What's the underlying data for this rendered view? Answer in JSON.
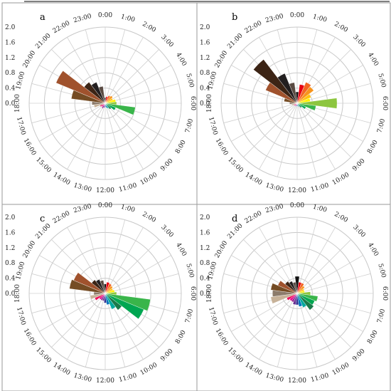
{
  "chart_data": [
    {
      "type": "polar-bar",
      "panel_label": "a",
      "radial_ticks": [
        "0.0",
        "0.4",
        "0.8",
        "1.2",
        "1.6",
        "2.0"
      ],
      "rmax": 2.0,
      "hour_labels": [
        "0:00",
        "1:00",
        "2:00",
        "3:00",
        "4:00",
        "5:00",
        "6:00",
        "7:00",
        "8:00",
        "9:00",
        "10:00",
        "11:00",
        "12:00",
        "13:00",
        "14:00",
        "15:00",
        "16:00",
        "17:00",
        "18:00",
        "19:00",
        "20:00",
        "21:00",
        "22:00",
        "23:00"
      ],
      "values": [
        0.15,
        0.18,
        0.22,
        0.25,
        0.22,
        0.28,
        0.3,
        0.8,
        0.3,
        0.2,
        0.15,
        0.12,
        0.1,
        0.12,
        0.15,
        0.12,
        0.15,
        0.3,
        0.35,
        0.9,
        1.4,
        0.7,
        0.6,
        0.45
      ]
    },
    {
      "type": "polar-bar",
      "panel_label": "b",
      "radial_ticks": [
        "0.0",
        "0.4",
        "0.8",
        "1.2",
        "1.6",
        "2.0"
      ],
      "rmax": 2.0,
      "hour_labels": [
        "0:00",
        "1:00",
        "2:00",
        "3:00",
        "4:00",
        "5:00",
        "6:00",
        "7:00",
        "8:00",
        "9:00",
        "10:00",
        "11:00",
        "12:00",
        "13:00",
        "14:00",
        "15:00",
        "16:00",
        "17:00",
        "18:00",
        "19:00",
        "20:00",
        "21:00",
        "22:00",
        "23:00"
      ],
      "values": [
        0.3,
        0.5,
        0.6,
        0.55,
        0.4,
        0.35,
        1.05,
        0.5,
        0.25,
        0.15,
        0.1,
        0.08,
        0.08,
        0.08,
        0.08,
        0.08,
        0.1,
        0.15,
        0.2,
        0.35,
        0.9,
        1.45,
        0.85,
        0.55
      ]
    },
    {
      "type": "polar-bar",
      "panel_label": "c",
      "radial_ticks": [
        "0.0",
        "0.4",
        "0.8",
        "1.2",
        "1.6",
        "2.0"
      ],
      "rmax": 2.0,
      "hour_labels": [
        "0:00",
        "1:00",
        "2:00",
        "3:00",
        "4:00",
        "5:00",
        "6:00",
        "7:00",
        "8:00",
        "9:00",
        "10:00",
        "11:00",
        "12:00",
        "13:00",
        "14:00",
        "15:00",
        "16:00",
        "17:00",
        "18:00",
        "19:00",
        "20:00",
        "21:00",
        "22:00",
        "23:00"
      ],
      "values": [
        0.25,
        0.3,
        0.28,
        0.25,
        0.22,
        0.25,
        0.3,
        1.2,
        1.1,
        0.55,
        0.45,
        0.3,
        0.25,
        0.2,
        0.2,
        0.2,
        0.3,
        0.4,
        0.3,
        0.95,
        0.9,
        0.45,
        0.4,
        0.35
      ]
    },
    {
      "type": "polar-bar",
      "panel_label": "d",
      "radial_ticks": [
        "0.0",
        "0.4",
        "0.8",
        "1.2",
        "1.6",
        "2.0"
      ],
      "rmax": 2.0,
      "hour_labels": [
        "0:00",
        "1:00",
        "2:00",
        "3:00",
        "4:00",
        "5:00",
        "6:00",
        "7:00",
        "8:00",
        "9:00",
        "10:00",
        "11:00",
        "12:00",
        "13:00",
        "14:00",
        "15:00",
        "16:00",
        "17:00",
        "18:00",
        "19:00",
        "20:00",
        "21:00",
        "22:00",
        "23:00"
      ],
      "values": [
        0.45,
        0.3,
        0.3,
        0.25,
        0.2,
        0.2,
        0.35,
        0.55,
        0.5,
        0.55,
        0.4,
        0.35,
        0.3,
        0.3,
        0.25,
        0.25,
        0.3,
        0.7,
        0.65,
        0.7,
        0.55,
        0.4,
        0.35,
        0.3
      ]
    }
  ],
  "bar_colors": [
    "#111111",
    "#e60012",
    "#f26522",
    "#f7941d",
    "#ffc20e",
    "#fff200",
    "#8dc63f",
    "#39b54a",
    "#00a651",
    "#1a7a4a",
    "#00a99d",
    "#0072bc",
    "#2e3192",
    "#662d91",
    "#92278f",
    "#ec008c",
    "#ed145b",
    "#c7b299",
    "#8c7b6b",
    "#754c24",
    "#a0522d",
    "#3c2415",
    "#231f20",
    "#594a42"
  ]
}
